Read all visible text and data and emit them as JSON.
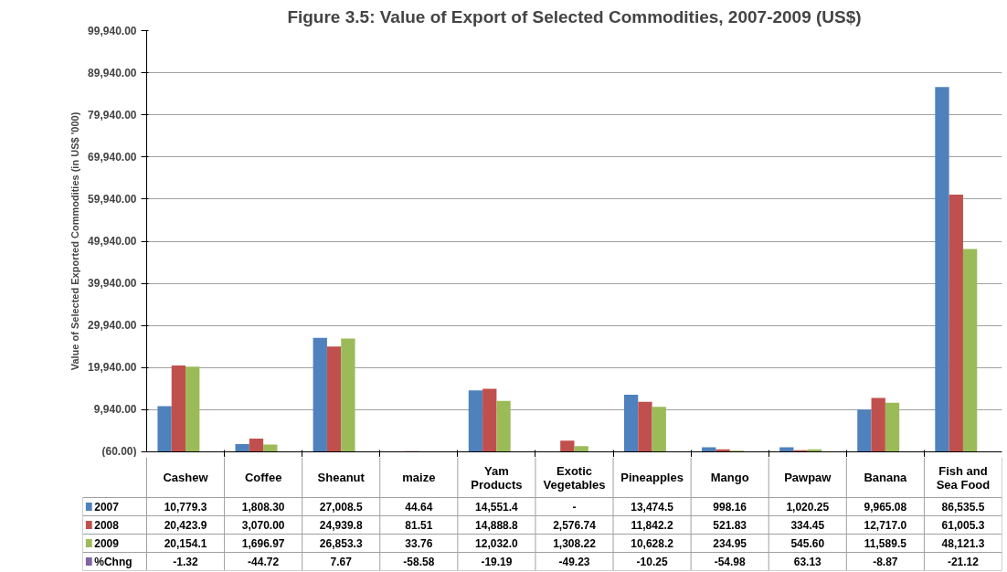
{
  "chart_data": {
    "type": "bar",
    "title": "Figure 3.5: Value of Export of Selected Commodities, 2007-2009 (US$)",
    "ylabel": "Value of Selected Exported Commodities (in US$ '000)",
    "categories": [
      "Cashew",
      "Coffee",
      "Sheanut",
      "maize",
      "Yam Products",
      "Exotic Vegetables",
      "Pineapples",
      "Mango",
      "Pawpaw",
      "Banana",
      "Fish and Sea Food"
    ],
    "series": [
      {
        "name": "2007",
        "color": "#4f81bd",
        "values": [
          10779.3,
          1808.3,
          27008.5,
          44.64,
          14551.4,
          null,
          13474.5,
          998.16,
          1020.25,
          9965.08,
          86535.5
        ],
        "value_labels": [
          "10,779.3",
          "1,808.30",
          "27,008.5",
          "44.64",
          "14,551.4",
          "-",
          "13,474.5",
          "998.16",
          "1,020.25",
          "9,965.08",
          "86,535.5"
        ]
      },
      {
        "name": "2008",
        "color": "#c0504d",
        "values": [
          20423.9,
          3070.0,
          24939.8,
          81.51,
          14888.8,
          2576.74,
          11842.2,
          521.83,
          334.45,
          12717.0,
          61005.3
        ],
        "value_labels": [
          "20,423.9",
          "3,070.00",
          "24,939.8",
          "81.51",
          "14,888.8",
          "2,576.74",
          "11,842.2",
          "521.83",
          "334.45",
          "12,717.0",
          "61,005.3"
        ]
      },
      {
        "name": "2009",
        "color": "#9bbb59",
        "values": [
          20154.1,
          1696.97,
          26853.3,
          33.76,
          12032.0,
          1308.22,
          10628.2,
          234.95,
          545.6,
          11589.5,
          48121.3
        ],
        "value_labels": [
          "20,154.1",
          "1,696.97",
          "26,853.3",
          "33.76",
          "12,032.0",
          "1,308.22",
          "10,628.2",
          "234.95",
          "545.60",
          "11,589.5",
          "48,121.3"
        ]
      },
      {
        "name": "%Chng",
        "color": "#8064a2",
        "values": [
          -1.32,
          -44.72,
          7.67,
          -58.58,
          -19.19,
          -49.23,
          -10.25,
          -54.98,
          63.13,
          -8.87,
          -21.12
        ],
        "value_labels": [
          "-1.32",
          "-44.72",
          "7.67",
          "-58.58",
          "-19.19",
          "-49.23",
          "-10.25",
          "-54.98",
          "63.13",
          "-8.87",
          "-21.12"
        ]
      }
    ],
    "ylim": [
      -60,
      99940
    ],
    "yticks": [
      {
        "value": -60,
        "label": "(60.00)"
      },
      {
        "value": 9940,
        "label": "9,940.00"
      },
      {
        "value": 19940,
        "label": "19,940.00"
      },
      {
        "value": 29940,
        "label": "29,940.00"
      },
      {
        "value": 39940,
        "label": "39,940.00"
      },
      {
        "value": 49940,
        "label": "49,940.00"
      },
      {
        "value": 59940,
        "label": "59,940.00"
      },
      {
        "value": 69940,
        "label": "69,940.00"
      },
      {
        "value": 79940,
        "label": "79,940.00"
      },
      {
        "value": 89940,
        "label": "89,940.00"
      },
      {
        "value": 99940,
        "label": "99,940.00"
      }
    ],
    "grid": "y",
    "legend": "bottom left"
  }
}
